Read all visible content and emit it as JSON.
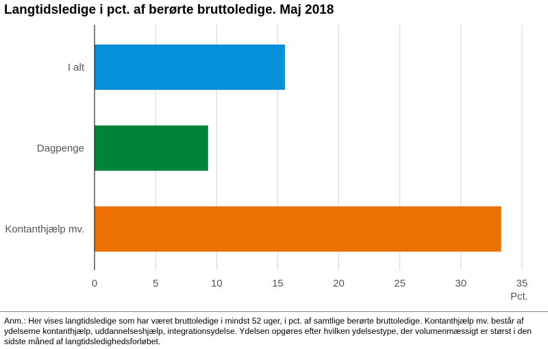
{
  "title": "Langtidsledige i pct. af berørte bruttoledige. Maj 2018",
  "note": "Anm.: Her vises langtidsledige som har været bruttoledige i mindst 52 uger, i pct. af samtlige berørte bruttoledige. Kontanthjælp mv. består af ydelserne kontanthjælp, uddannelseshjælp, integrationsydelse. Ydelsen opgøres efter hvilken ydelsestype, der volumenmæssigt er størst i den sidste måned af langtidsledighedsforløbet.",
  "chart_data": {
    "type": "bar",
    "orientation": "horizontal",
    "title": "Langtidsledige i pct. af berørte bruttoledige. Maj 2018",
    "categories": [
      "I alt",
      "Dagpenge",
      "Kontanthjælp mv."
    ],
    "values": [
      15.6,
      9.3,
      33.3
    ],
    "colors": [
      "#0891d8",
      "#00843c",
      "#ec7102"
    ],
    "xlabel": "Pct.",
    "xlim": [
      0,
      35
    ],
    "xticks": [
      "0",
      "5",
      "10",
      "15",
      "20",
      "25",
      "30",
      "35"
    ],
    "grid": "vertical",
    "legend": "none"
  }
}
